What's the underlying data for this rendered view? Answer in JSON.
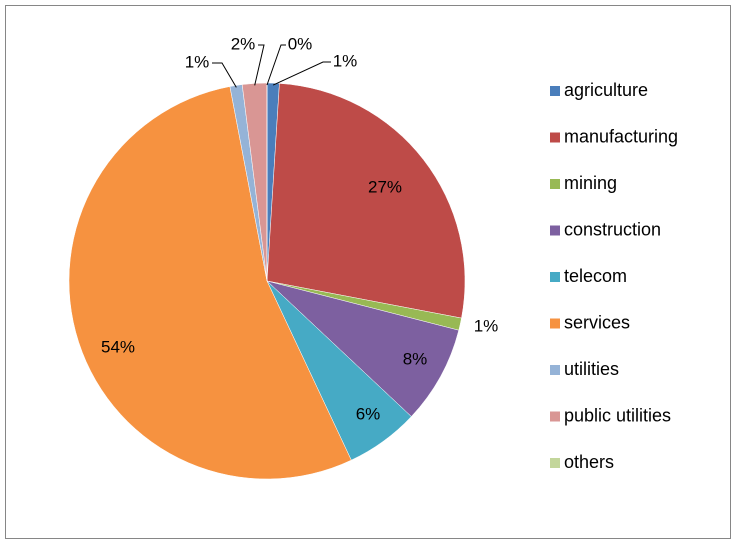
{
  "chart_data": {
    "type": "pie",
    "categories": [
      "agriculture",
      "manufacturing",
      "mining",
      "construction",
      "telecom",
      "services",
      "utilities",
      "public utilities",
      "others"
    ],
    "values": [
      1,
      27,
      1,
      8,
      6,
      54,
      1,
      2,
      0
    ],
    "value_labels": [
      "1%",
      "27%",
      "1%",
      "8%",
      "6%",
      "54%",
      "1%",
      "2%",
      "0%"
    ],
    "colors": [
      "#4a7ebb",
      "#be4b48",
      "#98b954",
      "#7d60a0",
      "#46aac5",
      "#f69240",
      "#95b3d7",
      "#d99694",
      "#c3d69b"
    ],
    "legend": "right"
  }
}
